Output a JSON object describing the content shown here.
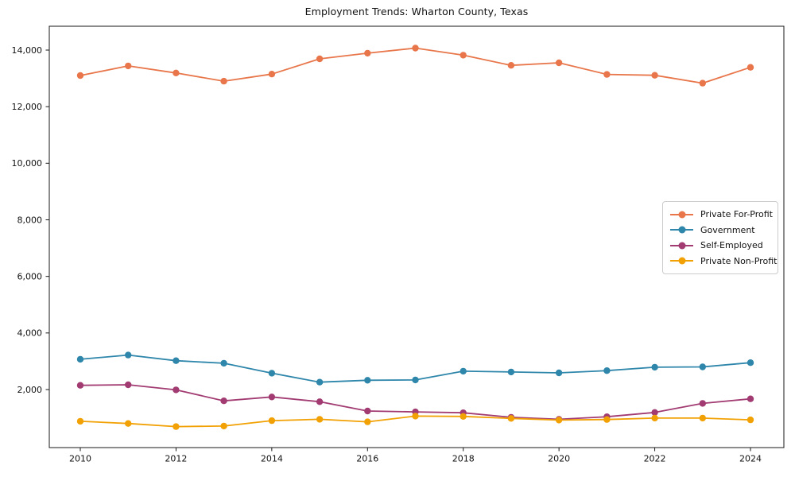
{
  "chart_data": {
    "type": "line",
    "title": "Employment Trends: Wharton County, Texas",
    "xlabel": "",
    "ylabel": "",
    "grid": false,
    "legend_position": "center-right",
    "x": [
      2010,
      2011,
      2012,
      2013,
      2014,
      2015,
      2016,
      2017,
      2018,
      2019,
      2020,
      2021,
      2022,
      2023,
      2024
    ],
    "x_ticks": [
      2010,
      2012,
      2014,
      2016,
      2018,
      2020,
      2022,
      2024
    ],
    "x_tick_labels": [
      "2010",
      "2012",
      "2014",
      "2016",
      "2018",
      "2020",
      "2022",
      "2024"
    ],
    "y_ticks": [
      2000,
      4000,
      6000,
      8000,
      10000,
      12000,
      14000
    ],
    "y_tick_labels": [
      "2,000",
      "4,000",
      "6,000",
      "8,000",
      "10,000",
      "12,000",
      "14,000"
    ],
    "xlim": [
      2009.3,
      2024.7
    ],
    "ylim": [
      -50,
      14850
    ],
    "series": [
      {
        "name": "Private For-Profit",
        "color": "#E8764A",
        "values": [
          13100,
          13440,
          13190,
          12900,
          13150,
          13690,
          13890,
          14070,
          13820,
          13460,
          13550,
          13140,
          13110,
          12830,
          13390
        ]
      },
      {
        "name": "Government",
        "color": "#2E86AB",
        "values": [
          3070,
          3220,
          3020,
          2930,
          2580,
          2260,
          2330,
          2340,
          2650,
          2620,
          2590,
          2670,
          2790,
          2800,
          2950
        ]
      },
      {
        "name": "Self-Employed",
        "color": "#A23B72",
        "values": [
          2150,
          2170,
          1990,
          1600,
          1740,
          1570,
          1240,
          1210,
          1180,
          1020,
          950,
          1040,
          1190,
          1510,
          1670
        ]
      },
      {
        "name": "Private Non-Profit",
        "color": "#F2A104",
        "values": [
          880,
          800,
          690,
          710,
          900,
          950,
          860,
          1060,
          1050,
          980,
          920,
          940,
          990,
          990,
          930
        ]
      }
    ]
  }
}
